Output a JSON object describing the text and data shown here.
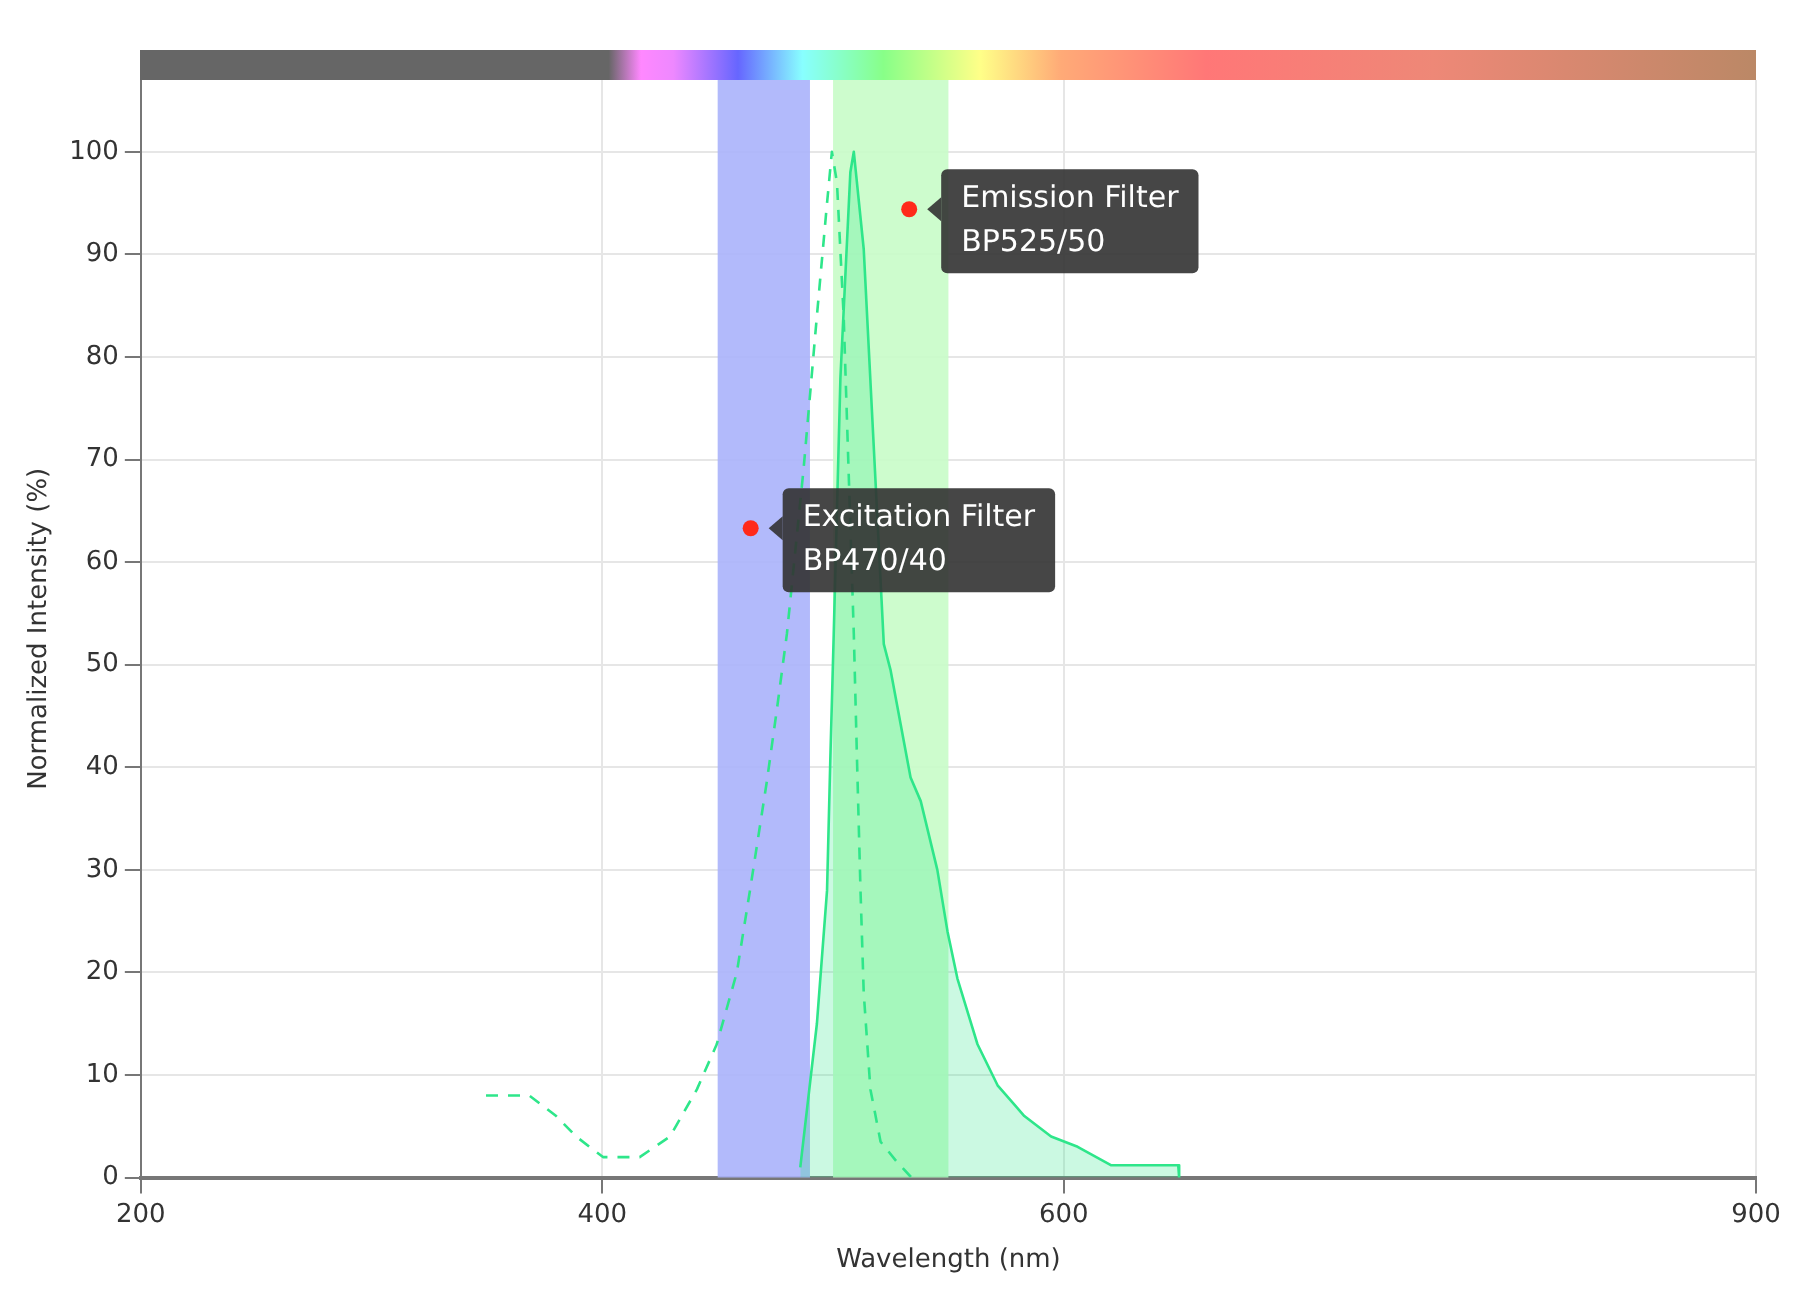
{
  "chart_data": {
    "type": "line",
    "xlabel": "Wavelength (nm)",
    "ylabel": "Normalized Intensity (%)",
    "xlim": [
      200,
      900
    ],
    "xticks": [
      200,
      400,
      600,
      900
    ],
    "ylim": [
      0,
      107
    ],
    "yticks": [
      0,
      10,
      20,
      30,
      40,
      50,
      60,
      70,
      80,
      90,
      100
    ],
    "grid": true,
    "legend": false,
    "series": [
      {
        "type": "line",
        "line_style": "dashed",
        "color": "#2ee68a",
        "x": [
          349.6,
          368.4,
          380,
          388.7,
          400.3,
          416.2,
          429.3,
          441,
          449.6,
          458.3,
          464,
          471.3,
          475.7,
          480,
          487.2,
          493,
          497.4,
          499.5,
          501.7,
          504.6,
          507.5,
          509,
          510.4,
          511.9,
          513.3,
          516.2,
          520.6,
          527.8,
          534
        ],
        "values": [
          8,
          8,
          6,
          4,
          2,
          2,
          4,
          8.6,
          13,
          20,
          28,
          38.6,
          45.7,
          53,
          69,
          84,
          95,
          100,
          97,
          84,
          null,
          53,
          40.6,
          28,
          18,
          8.6,
          3.5,
          1.5,
          0
        ]
      },
      {
        "type": "area",
        "color": "#2ee68a",
        "x": [
          485.8,
          493,
          497.4,
          498.8,
          500.3,
          503.2,
          507.5,
          509,
          513.3,
          517.7,
          522,
          524.9,
          533.6,
          538,
          545.2,
          549.6,
          553.9,
          562.6,
          571.3,
          582.9,
          594.5,
          606,
          620.6,
          649.6,
          650
        ],
        "values": [
          1,
          15,
          28,
          40.6,
          53,
          78,
          98,
          100,
          90.5,
          71,
          52,
          49.5,
          39,
          36.7,
          30,
          24,
          19.4,
          13,
          9,
          6,
          4,
          3,
          1.2,
          1.2,
          0
        ]
      }
    ],
    "bands": [
      {
        "axis": "x",
        "from": 450,
        "to": 490,
        "color": "#aab2fb"
      },
      {
        "axis": "x",
        "from": 500,
        "to": 550,
        "color": "#c8fcc8"
      }
    ],
    "annotations": [
      {
        "text": "Excitation Filter\nBP470/40",
        "x": 464.3,
        "y": 63.3
      },
      {
        "text": "Emission Filter\nBP525/50",
        "x": 533,
        "y": 94.4
      }
    ]
  }
}
